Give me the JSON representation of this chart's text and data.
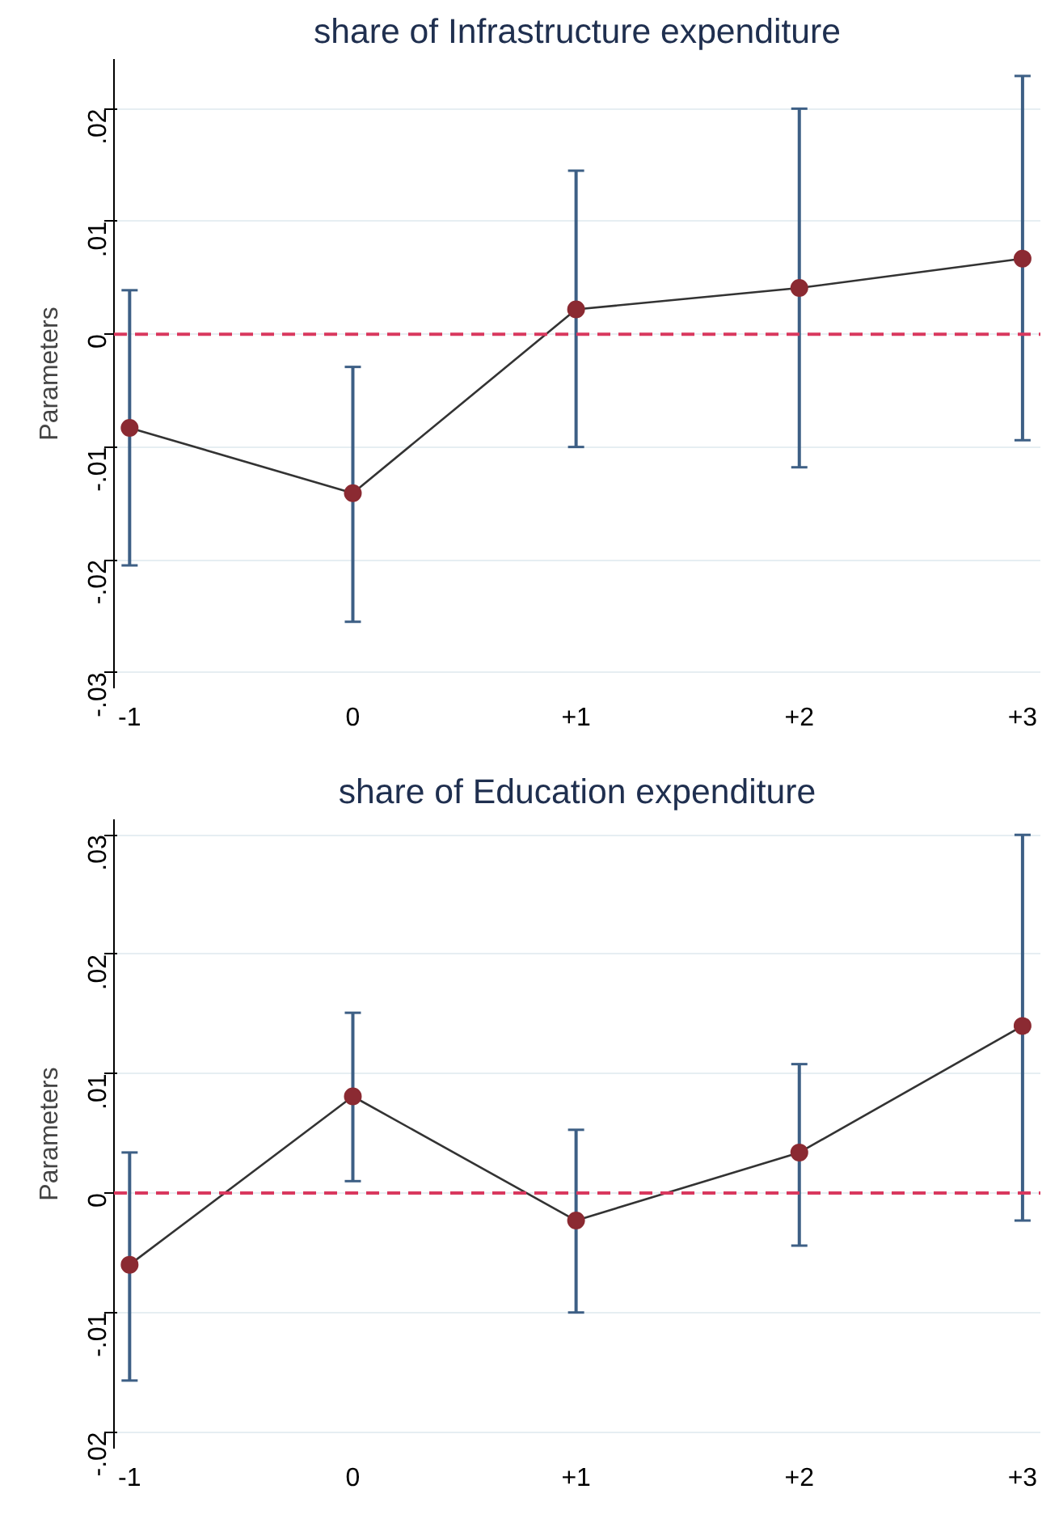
{
  "chart_data": [
    {
      "type": "line",
      "title": "share of Infrastructure expenditure",
      "ylabel": "Parameters",
      "x": [
        -1,
        0,
        1,
        2,
        3
      ],
      "xlim": [
        -1.07,
        3.08
      ],
      "xticks": [
        {
          "value": -1,
          "label": "-1"
        },
        0,
        {
          "value": 1,
          "label": "+1"
        },
        {
          "value": 2,
          "label": "+2"
        },
        {
          "value": 3,
          "label": "+3"
        }
      ],
      "ylim": [
        -0.0314,
        0.0244
      ],
      "yticks": [
        {
          "value": -0.03,
          "label": "-.03"
        },
        {
          "value": -0.02,
          "label": "-.02"
        },
        {
          "value": -0.01,
          "label": "-.01"
        },
        0,
        {
          "value": 0.01,
          "label": ".01"
        },
        {
          "value": 0.02,
          "label": ".02"
        }
      ],
      "series": [
        {
          "color": "#8b2a32",
          "values": [
            -0.0083,
            -0.0141,
            0.0022,
            0.0041,
            0.0067
          ],
          "errors": [
            [
              -0.0205,
              0.0039
            ],
            [
              -0.0255,
              -0.0029
            ],
            [
              -0.01,
              0.0145
            ],
            [
              -0.0118,
              0.02
            ],
            [
              -0.0094,
              0.0229
            ]
          ]
        }
      ],
      "ref_lines": [
        {
          "axis": "y",
          "value": 0,
          "color": "#d9385e",
          "line_style": "dashed"
        }
      ],
      "grid": "y",
      "marker": "circle",
      "line_style": "solid"
    },
    {
      "type": "line",
      "title": "share of Education expenditure",
      "ylabel": "Parameters",
      "x": [
        -1,
        0,
        1,
        2,
        3
      ],
      "xlim": [
        -1.07,
        3.08
      ],
      "xticks": [
        {
          "value": -1,
          "label": "-1"
        },
        0,
        {
          "value": 1,
          "label": "+1"
        },
        {
          "value": 2,
          "label": "+2"
        },
        {
          "value": 3,
          "label": "+3"
        }
      ],
      "ylim": [
        -0.0214,
        0.0313
      ],
      "yticks": [
        {
          "value": -0.02,
          "label": "-.02"
        },
        {
          "value": -0.01,
          "label": "-.01"
        },
        0,
        {
          "value": 0.01,
          "label": ".01"
        },
        {
          "value": 0.02,
          "label": ".02"
        },
        {
          "value": 0.03,
          "label": ".03"
        }
      ],
      "series": [
        {
          "color": "#8b2a32",
          "values": [
            -0.006,
            0.0081,
            -0.0023,
            0.0034,
            0.014
          ],
          "errors": [
            [
              -0.0157,
              0.0034
            ],
            [
              0.001,
              0.0151
            ],
            [
              -0.01,
              0.0053
            ],
            [
              -0.0044,
              0.0108
            ],
            [
              -0.0023,
              0.03
            ]
          ]
        }
      ],
      "ref_lines": [
        {
          "axis": "y",
          "value": 0,
          "color": "#d9385e",
          "line_style": "dashed"
        }
      ],
      "grid": "y",
      "marker": "circle",
      "line_style": "solid"
    }
  ]
}
